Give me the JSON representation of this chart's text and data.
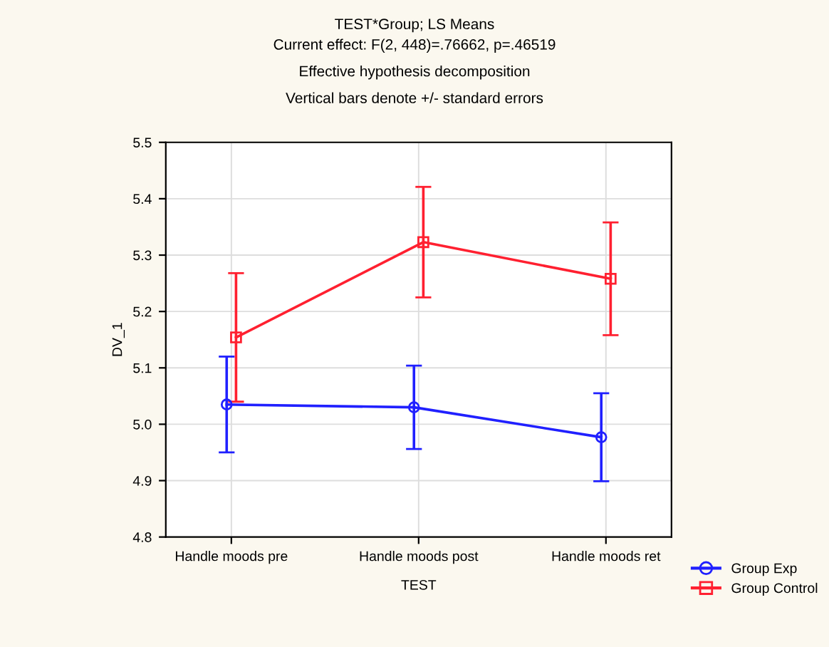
{
  "chart_data": {
    "type": "line",
    "title": "TEST*Group; LS Means",
    "subtitle": "Current effect: F(2, 448)=.76662, p=.46519\nEffective hypothesis decomposition\nVertical bars denote +/- standard errors",
    "xlabel": "TEST",
    "ylabel": "DV_1",
    "categories": [
      "Handle moods pre",
      "Handle moods post",
      "Handle moods ret"
    ],
    "series": [
      {
        "name": "Group Exp",
        "color": "#2020ff",
        "marker": "circle",
        "values": [
          5.035,
          5.03,
          4.977
        ],
        "errors": [
          0.085,
          0.074,
          0.078
        ]
      },
      {
        "name": "Group Control",
        "color": "#ff2030",
        "marker": "square",
        "values": [
          5.154,
          5.323,
          5.258
        ],
        "errors": [
          0.114,
          0.098,
          0.1
        ]
      }
    ],
    "ylim": [
      4.8,
      5.5
    ],
    "yticks": [
      {
        "value": 4.8,
        "label": "4.8"
      },
      {
        "value": 4.9,
        "label": "4.9"
      },
      {
        "value": 5.0,
        "label": "5.0"
      },
      {
        "value": 5.1,
        "label": "5.1"
      },
      {
        "value": 5.2,
        "label": "5.2"
      },
      {
        "value": 5.3,
        "label": "5.3"
      },
      {
        "value": 5.4,
        "label": "5.4"
      },
      {
        "value": 5.5,
        "label": "5.5"
      }
    ],
    "grid": true,
    "legend": "bottom right",
    "line_style": "solid"
  }
}
